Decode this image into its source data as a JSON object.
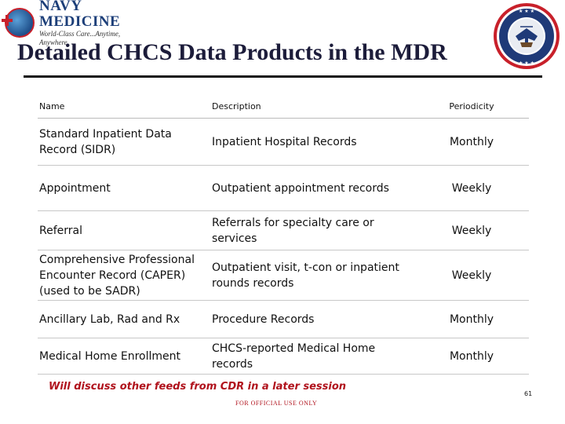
{
  "header": {
    "logo_title": "NAVY MEDICINE",
    "logo_tagline": "World-Class Care...Anytime, Anywhere",
    "seal_text": "DEPARTMENT OF THE NAVY • UNITED STATES OF AMERICA"
  },
  "title": "Detailed CHCS Data Products in the MDR",
  "table": {
    "headers": {
      "name": "Name",
      "description": "Description",
      "periodicity": "Periodicity"
    },
    "rows": [
      {
        "name": "Standard Inpatient Data Record (SIDR)",
        "description": "Inpatient Hospital Records",
        "periodicity": "Monthly"
      },
      {
        "name": "Appointment",
        "description": "Outpatient appointment records",
        "periodicity": "Weekly"
      },
      {
        "name": "Referral",
        "description": "Referrals for specialty care or services",
        "periodicity": "Weekly"
      },
      {
        "name": "Comprehensive Professional Encounter Record (CAPER) (used to be SADR)",
        "description": "Outpatient visit, t-con or inpatient rounds records",
        "periodicity": "Weekly"
      },
      {
        "name": "Ancillary Lab, Rad and Rx",
        "description": "Procedure Records",
        "periodicity": "Monthly"
      },
      {
        "name": "Medical Home Enrollment",
        "description": "CHCS-reported Medical Home records",
        "periodicity": "Monthly"
      }
    ]
  },
  "footnote": "Will discuss other feeds from CDR in a later session",
  "classification": "FOR OFFICIAL USE ONLY",
  "page_number": "61"
}
